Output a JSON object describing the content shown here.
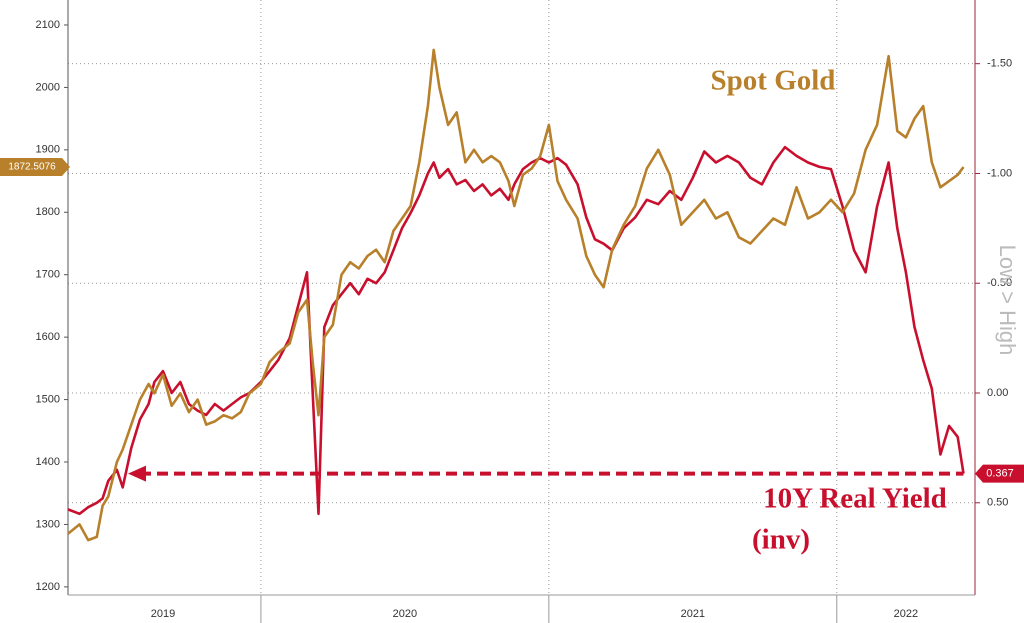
{
  "chart_data": {
    "type": "line",
    "x": [
      2019.33,
      2019.37,
      2019.4,
      2019.43,
      2019.45,
      2019.47,
      2019.5,
      2019.52,
      2019.55,
      2019.58,
      2019.61,
      2019.63,
      2019.66,
      2019.69,
      2019.72,
      2019.75,
      2019.78,
      2019.81,
      2019.84,
      2019.87,
      2019.9,
      2019.93,
      2019.96,
      2020.0,
      2020.03,
      2020.06,
      2020.1,
      2020.13,
      2020.16,
      2020.18,
      2020.2,
      2020.22,
      2020.25,
      2020.28,
      2020.31,
      2020.34,
      2020.37,
      2020.4,
      2020.43,
      2020.46,
      2020.49,
      2020.52,
      2020.55,
      2020.58,
      2020.6,
      2020.62,
      2020.65,
      2020.68,
      2020.71,
      2020.74,
      2020.77,
      2020.8,
      2020.83,
      2020.86,
      2020.88,
      2020.91,
      2020.94,
      2020.97,
      2021.0,
      2021.03,
      2021.06,
      2021.1,
      2021.13,
      2021.16,
      2021.19,
      2021.22,
      2021.26,
      2021.3,
      2021.34,
      2021.38,
      2021.42,
      2021.46,
      2021.5,
      2021.54,
      2021.58,
      2021.62,
      2021.66,
      2021.7,
      2021.74,
      2021.78,
      2021.82,
      2021.86,
      2021.9,
      2021.94,
      2021.98,
      2022.02,
      2022.06,
      2022.1,
      2022.14,
      2022.18,
      2022.21,
      2022.24,
      2022.27,
      2022.3,
      2022.33,
      2022.36,
      2022.39,
      2022.42,
      2022.44
    ],
    "series": [
      {
        "name": "Spot Gold",
        "color": "#b8802a",
        "axis": "y",
        "last_label": "1872.5076",
        "values": [
          1285,
          1300,
          1275,
          1280,
          1330,
          1345,
          1400,
          1420,
          1460,
          1500,
          1525,
          1510,
          1540,
          1490,
          1510,
          1480,
          1500,
          1460,
          1465,
          1475,
          1470,
          1480,
          1510,
          1525,
          1560,
          1575,
          1590,
          1640,
          1660,
          1560,
          1475,
          1600,
          1620,
          1700,
          1720,
          1710,
          1730,
          1740,
          1720,
          1770,
          1790,
          1810,
          1880,
          1970,
          2060,
          2000,
          1940,
          1960,
          1880,
          1900,
          1880,
          1890,
          1880,
          1850,
          1810,
          1860,
          1870,
          1890,
          1940,
          1850,
          1820,
          1790,
          1730,
          1700,
          1680,
          1740,
          1780,
          1810,
          1870,
          1900,
          1860,
          1780,
          1800,
          1820,
          1790,
          1800,
          1760,
          1750,
          1770,
          1790,
          1780,
          1840,
          1790,
          1800,
          1820,
          1800,
          1830,
          1900,
          1940,
          2050,
          1930,
          1920,
          1950,
          1970,
          1880,
          1840,
          1850,
          1860,
          1872.5076
        ]
      },
      {
        "name": "10Y Real Yield",
        "color": "#c8102e",
        "axis": "y2",
        "last_label": "0.367",
        "values": [
          0.53,
          0.55,
          0.52,
          0.5,
          0.48,
          0.4,
          0.35,
          0.43,
          0.25,
          0.12,
          0.05,
          -0.05,
          -0.1,
          0.0,
          -0.05,
          0.05,
          0.08,
          0.1,
          0.05,
          0.08,
          0.05,
          0.02,
          0.0,
          -0.05,
          -0.1,
          -0.15,
          -0.25,
          -0.4,
          -0.55,
          0.0,
          0.55,
          -0.3,
          -0.4,
          -0.45,
          -0.5,
          -0.45,
          -0.52,
          -0.5,
          -0.55,
          -0.65,
          -0.75,
          -0.82,
          -0.9,
          -1.0,
          -1.05,
          -0.98,
          -1.02,
          -0.95,
          -0.97,
          -0.92,
          -0.95,
          -0.9,
          -0.93,
          -0.88,
          -0.95,
          -1.02,
          -1.05,
          -1.07,
          -1.05,
          -1.07,
          -1.04,
          -0.95,
          -0.8,
          -0.7,
          -0.68,
          -0.65,
          -0.75,
          -0.8,
          -0.88,
          -0.86,
          -0.92,
          -0.88,
          -0.98,
          -1.1,
          -1.05,
          -1.08,
          -1.05,
          -0.98,
          -0.95,
          -1.05,
          -1.12,
          -1.08,
          -1.05,
          -1.03,
          -1.02,
          -0.85,
          -0.65,
          -0.55,
          -0.85,
          -1.05,
          -0.75,
          -0.55,
          -0.3,
          -0.15,
          -0.02,
          0.28,
          0.15,
          0.2,
          0.367
        ]
      }
    ],
    "series_note": "(inv)",
    "y2_label": "Low > High",
    "xlim": [
      2019.33,
      2022.48
    ],
    "xticks": [
      2020,
      2021,
      2022
    ],
    "x_period_labels": [
      {
        "value": 2019.66,
        "label": "2019"
      },
      {
        "value": 2020.5,
        "label": "2020"
      },
      {
        "value": 2021.5,
        "label": "2021"
      },
      {
        "value": 2022.24,
        "label": "2022"
      }
    ],
    "ylim": [
      1187,
      2140
    ],
    "yticks": [
      1200,
      1300,
      1400,
      1500,
      1600,
      1700,
      1800,
      1900,
      2000,
      2100
    ],
    "y2lim": [
      0.92,
      -1.79
    ],
    "y2ticks": [
      {
        "value": -1.5,
        "label": "-1.50"
      },
      {
        "value": -1.0,
        "label": "-1.00"
      },
      {
        "value": -0.5,
        "label": "-0.50"
      },
      {
        "value": 0,
        "label": "0.00"
      },
      {
        "value": 0.5,
        "label": "0.50"
      }
    ],
    "grid": true
  }
}
